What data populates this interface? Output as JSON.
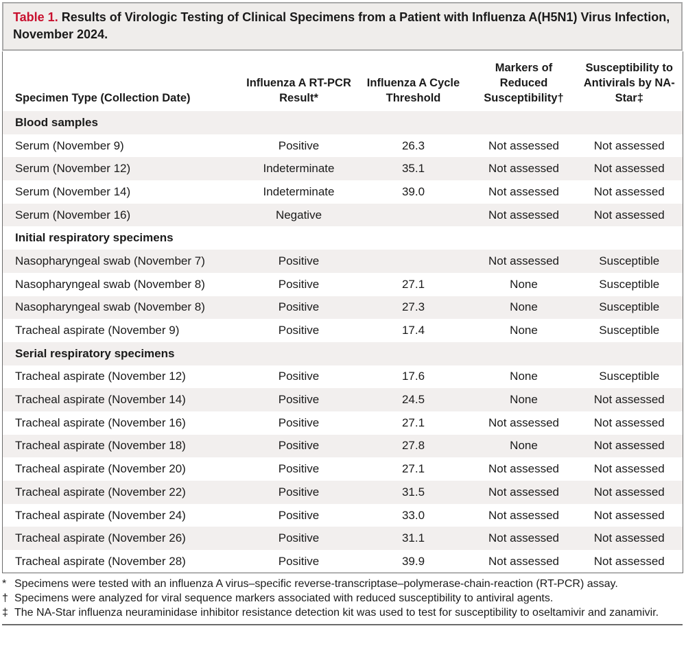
{
  "title": {
    "label": "Table 1.",
    "text": "Results of Virologic Testing of Clinical Specimens from a Patient with Influenza A(H5N1) Virus Infection, November 2024."
  },
  "columns": [
    "Specimen Type (Collection Date)",
    "Influenza A RT-PCR Result*",
    "Influenza A Cycle Threshold",
    "Markers of Reduced Susceptibility†",
    "Susceptibility to Antivirals by NA-Star‡"
  ],
  "groups": [
    {
      "label": "Blood samples",
      "rows": [
        [
          "Serum (November 9)",
          "Positive",
          "26.3",
          "Not assessed",
          "Not assessed"
        ],
        [
          "Serum (November 12)",
          "Indeterminate",
          "35.1",
          "Not assessed",
          "Not assessed"
        ],
        [
          "Serum (November 14)",
          "Indeterminate",
          "39.0",
          "Not assessed",
          "Not assessed"
        ],
        [
          "Serum (November 16)",
          "Negative",
          "",
          "Not assessed",
          "Not assessed"
        ]
      ]
    },
    {
      "label": "Initial respiratory specimens",
      "rows": [
        [
          "Nasopharyngeal swab (November 7)",
          "Positive",
          "",
          "Not assessed",
          "Susceptible"
        ],
        [
          "Nasopharyngeal swab (November 8)",
          "Positive",
          "27.1",
          "None",
          "Susceptible"
        ],
        [
          "Nasopharyngeal swab (November 8)",
          "Positive",
          "27.3",
          "None",
          "Susceptible"
        ],
        [
          "Tracheal aspirate (November 9)",
          "Positive",
          "17.4",
          "None",
          "Susceptible"
        ]
      ]
    },
    {
      "label": "Serial respiratory specimens",
      "rows": [
        [
          "Tracheal aspirate (November 12)",
          "Positive",
          "17.6",
          "None",
          "Susceptible"
        ],
        [
          "Tracheal aspirate (November 14)",
          "Positive",
          "24.5",
          "None",
          "Not assessed"
        ],
        [
          "Tracheal aspirate (November 16)",
          "Positive",
          "27.1",
          "Not assessed",
          "Not assessed"
        ],
        [
          "Tracheal aspirate (November 18)",
          "Positive",
          "27.8",
          "None",
          "Not assessed"
        ],
        [
          "Tracheal aspirate (November 20)",
          "Positive",
          "27.1",
          "Not assessed",
          "Not assessed"
        ],
        [
          "Tracheal aspirate (November 22)",
          "Positive",
          "31.5",
          "Not assessed",
          "Not assessed"
        ],
        [
          "Tracheal aspirate (November 24)",
          "Positive",
          "33.0",
          "Not assessed",
          "Not assessed"
        ],
        [
          "Tracheal aspirate (November 26)",
          "Positive",
          "31.1",
          "Not assessed",
          "Not assessed"
        ],
        [
          "Tracheal aspirate (November 28)",
          "Positive",
          "39.9",
          "Not assessed",
          "Not assessed"
        ]
      ]
    }
  ],
  "footnotes": [
    {
      "symbol": "*",
      "text": "Specimens were tested with an influenza A virus–specific reverse-transcriptase–polymerase-chain-reaction (RT-PCR) assay."
    },
    {
      "symbol": "†",
      "text": "Specimens were analyzed for viral sequence markers associated with reduced susceptibility to antiviral agents."
    },
    {
      "symbol": "‡",
      "text": "The NA-Star influenza neuraminidase inhibitor resistance detection kit was used to test for susceptibility to oseltamivir and zanamivir."
    }
  ],
  "colors": {
    "title_label": "#c8102e",
    "title_bg": "#efedeb",
    "row_shade": "#f2efee"
  }
}
